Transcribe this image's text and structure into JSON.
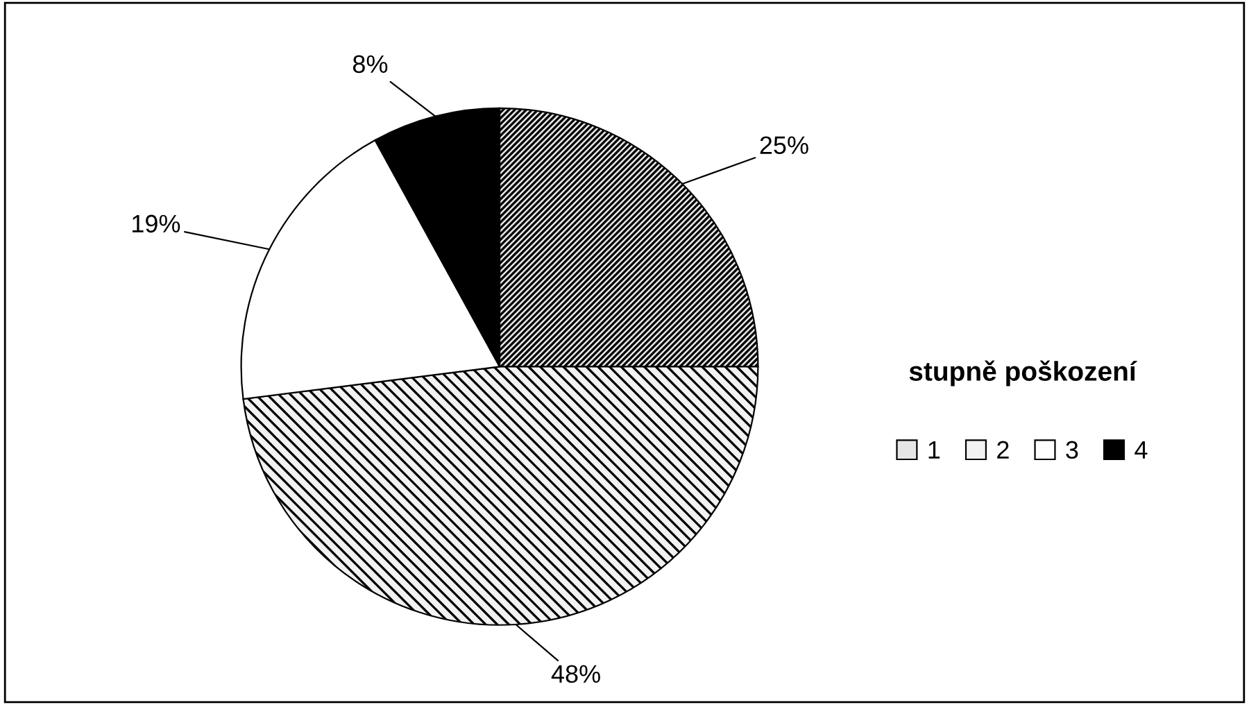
{
  "chart_data": {
    "type": "pie",
    "legend_title": "stupně poškození",
    "categories": [
      "1",
      "2",
      "3",
      "4"
    ],
    "values": [
      25,
      48,
      19,
      8
    ],
    "colors": [
      "#e6e6e6",
      "#f2f2f2",
      "#ffffff",
      "#000000"
    ],
    "value_labels": [
      "25%",
      "48%",
      "19%",
      "8%"
    ],
    "legend": "right"
  }
}
